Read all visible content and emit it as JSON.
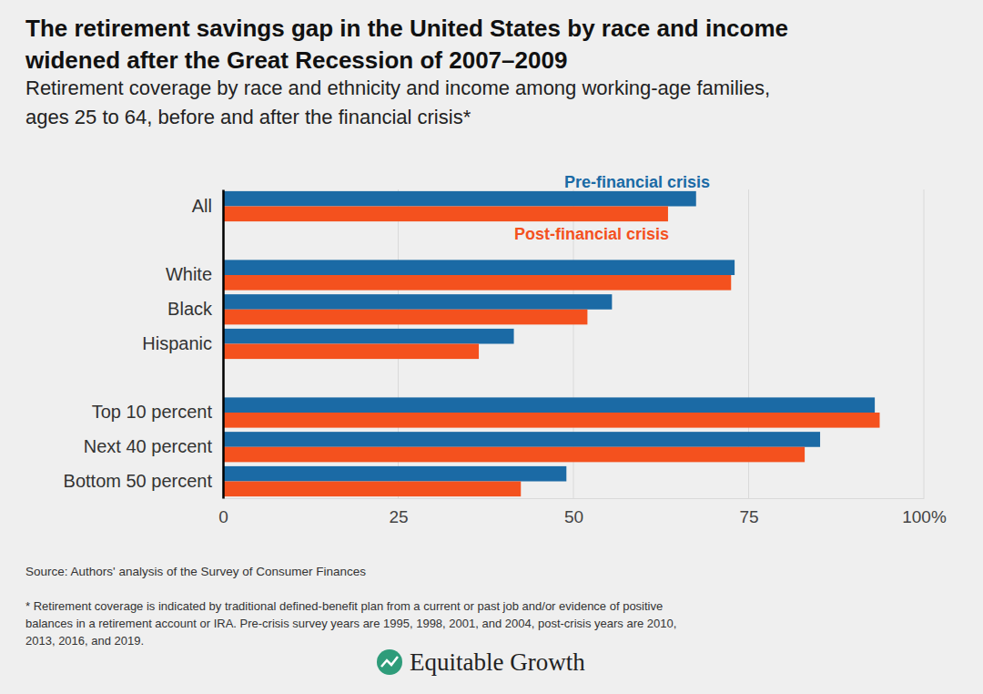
{
  "chart_data": {
    "type": "bar",
    "orientation": "horizontal",
    "title": [
      "The retirement savings gap in the United States by race and income",
      "widened after the Great Recession of 2007–2009"
    ],
    "subtitle": [
      "Retirement coverage by race and ethnicity and income among working-age families,",
      "ages 25 to 64, before and after the financial crisis*"
    ],
    "categories": [
      "All",
      null,
      "White",
      "Black",
      "Hispanic",
      null,
      "Top 10 percent",
      "Next 40 percent",
      "Bottom 50 percent"
    ],
    "series": [
      {
        "name": "Pre-financial crisis",
        "color": "#1b6aa5",
        "values": [
          67.5,
          null,
          73,
          55.5,
          41.5,
          null,
          93,
          85.2,
          49
        ]
      },
      {
        "name": "Post-financial crisis",
        "color": "#f4511e",
        "values": [
          63.5,
          null,
          72.5,
          52,
          36.5,
          null,
          93.7,
          83,
          42.5
        ]
      }
    ],
    "xlim": [
      0,
      100
    ],
    "xticks": [
      0,
      25,
      50,
      75,
      {
        "value": 100,
        "label": "100%"
      }
    ],
    "grid": true,
    "legend": "top",
    "source": "Source: Authors' analysis of the Survey of Consumer Finances",
    "footnote": [
      "* Retirement coverage is indicated by traditional defined-benefit plan from a current or past job and/or evidence of positive",
      "balances in a retirement account or IRA. Pre-crisis survey years are 1995, 1998, 2001, and 2004, post-crisis years are 2010,",
      "2013, 2016, and 2019."
    ],
    "brand": "Equitable Growth"
  }
}
